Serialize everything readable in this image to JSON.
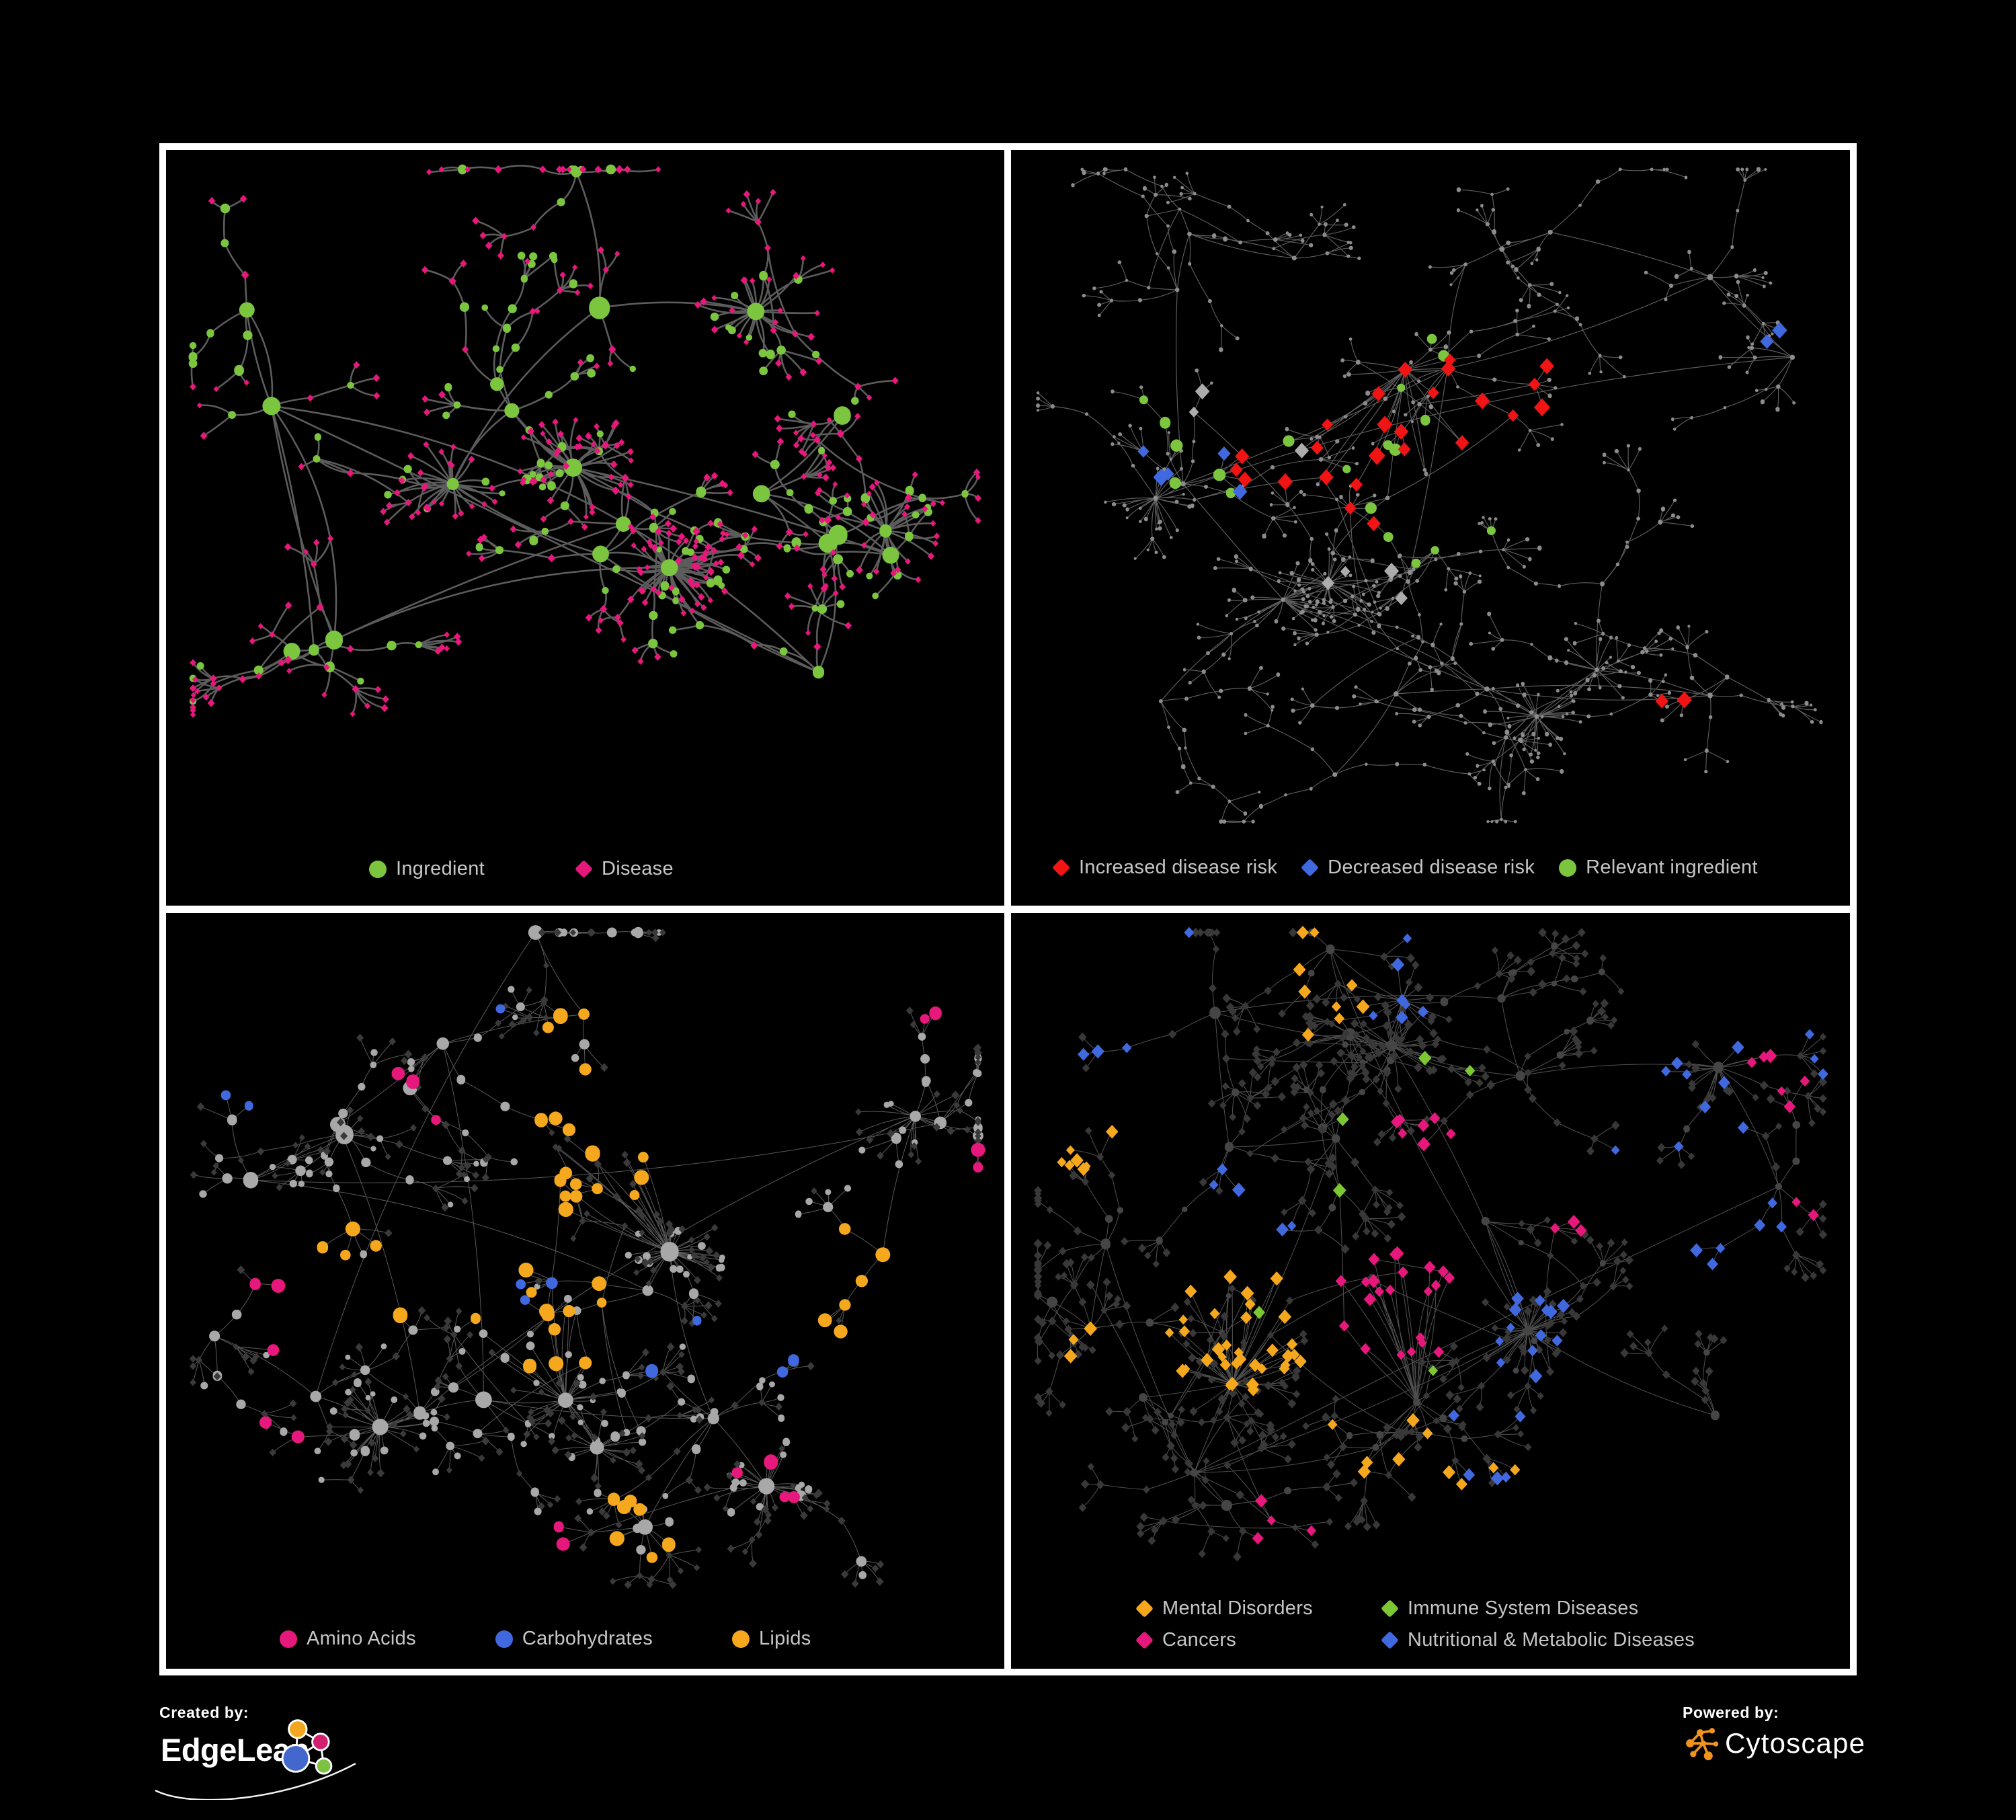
{
  "palette": {
    "green": "#7CC63F",
    "pink": "#E7187C",
    "red": "#F01414",
    "blue": "#4169DF",
    "grayHL": "#ACACAC",
    "amber": "#F5A81D",
    "gray": "#A8A8A8",
    "dot": "#8C8C8C",
    "dark": "#3A3A3A",
    "dark2": "#383838",
    "darkCircle": "#454545",
    "limegreen": "#7DC832",
    "legendText": "#C6C6C6",
    "cytoOrange": "#F0941E",
    "elOrange": "#F2A71F",
    "elMagenta": "#D21F6E",
    "elBlue": "#4467CE",
    "elGreen": "#7DC242",
    "white": "#FFFFFF"
  },
  "panels": [
    {
      "key": "ingredient-disease",
      "legend": {
        "rows": [
          [
            {
              "label": "Ingredient",
              "shape": "circle",
              "color": "green"
            },
            {
              "label": "Disease",
              "shape": "diamond",
              "color": "pink"
            }
          ]
        ]
      },
      "network": {
        "seed": 101,
        "hubs": 22,
        "branches": [
          2,
          4
        ],
        "chain": 3,
        "fan": [
          2,
          6
        ],
        "step": 0.05,
        "leaf": 0.034,
        "mega": 6,
        "megaLeaves": [
          16,
          34
        ],
        "web": 60,
        "webDist": 0.16,
        "curve": 0.2,
        "spread": [
          1.0,
          0.92
        ],
        "edge": {
          "color": "#666666",
          "width": 2.6,
          "opacity": 0.9
        },
        "roles": {
          "hub": [
            {
              "p": 1,
              "shape": "circle",
              "color": "green",
              "r": [
                7,
                16
              ]
            }
          ],
          "mid": [
            {
              "p": 0.5,
              "shape": "circle",
              "color": "green",
              "r": [
                5,
                7.5
              ]
            },
            {
              "p": 0.5,
              "shape": "diamond",
              "color": "pink",
              "r": [
                4.5,
                6
              ]
            }
          ],
          "leaf": [
            {
              "p": 0.8,
              "shape": "diamond",
              "color": "pink",
              "r": [
                4,
                5.5
              ]
            },
            {
              "p": 0.2,
              "shape": "circle",
              "color": "green",
              "r": [
                4.5,
                6.5
              ]
            }
          ]
        },
        "highlights": []
      }
    },
    {
      "key": "disease-risk",
      "legend": {
        "rows": [
          [
            {
              "label": "Increased disease risk",
              "shape": "diamond",
              "color": "red"
            },
            {
              "label": "Decreased disease risk",
              "shape": "diamond",
              "color": "blue"
            },
            {
              "label": "Relevant ingredient",
              "shape": "circle",
              "color": "green"
            }
          ]
        ]
      },
      "network": {
        "seed": 202,
        "hubs": 24,
        "branches": [
          3,
          5
        ],
        "chain": 4,
        "fan": [
          2,
          5
        ],
        "step": 0.045,
        "leaf": 0.03,
        "mega": 5,
        "megaLeaves": [
          12,
          26
        ],
        "web": 150,
        "webDist": 0.2,
        "curve": 0.1,
        "spread": [
          1.02,
          0.95
        ],
        "boost": [
          [
            20,
            0.44,
            0.4,
            0.12
          ]
        ],
        "edge": {
          "color": "#6E6E6E",
          "width": 1.15,
          "opacity": 0.85
        },
        "roles": {
          "hub": [
            {
              "p": 1,
              "shape": "circle",
              "color": "dot",
              "r": [
                2.8,
                4.2
              ]
            }
          ],
          "mid": [
            {
              "p": 1,
              "shape": "circle",
              "color": "dot",
              "r": [
                2.2,
                3.4
              ]
            }
          ],
          "leaf": [
            {
              "p": 1,
              "shape": "circle",
              "color": "dot",
              "r": [
                2,
                3.2
              ]
            }
          ]
        },
        "highlights": [
          {
            "shape": "diamond",
            "color": "red",
            "r": 10,
            "groups": [
              [
                16,
                0.48,
                0.43,
                0.14
              ],
              [
                5,
                0.3,
                0.42,
                0.08
              ],
              [
                4,
                0.6,
                0.36,
                0.07
              ],
              [
                2,
                0.78,
                0.86,
                0.07
              ]
            ]
          },
          {
            "shape": "diamond",
            "color": "blue",
            "r": 10,
            "groups": [
              [
                5,
                0.22,
                0.45,
                0.08
              ],
              [
                2,
                0.9,
                0.29,
                0.05
              ]
            ]
          },
          {
            "shape": "diamond",
            "color": "grayHL",
            "r": 9,
            "groups": [
              [
                4,
                0.45,
                0.57,
                0.1
              ],
              [
                3,
                0.27,
                0.38,
                0.09
              ]
            ]
          },
          {
            "shape": "circle",
            "color": "green",
            "r": 7.5,
            "groups": [
              [
                12,
                0.4,
                0.4,
                0.18
              ],
              [
                4,
                0.16,
                0.42,
                0.09
              ],
              [
                3,
                0.55,
                0.6,
                0.09
              ]
            ]
          }
        ]
      }
    },
    {
      "key": "nutrient-groups",
      "legend": {
        "rows": [
          [
            {
              "label": "Amino Acids",
              "shape": "circle",
              "color": "pink"
            },
            {
              "label": "Carbohydrates",
              "shape": "circle",
              "color": "blue"
            },
            {
              "label": "Lipids",
              "shape": "circle",
              "color": "amber"
            }
          ]
        ]
      },
      "network": {
        "seed": 303,
        "hubs": 22,
        "branches": [
          2,
          4
        ],
        "chain": 3,
        "fan": [
          2,
          6
        ],
        "step": 0.047,
        "leaf": 0.032,
        "mega": 7,
        "megaLeaves": [
          14,
          30
        ],
        "web": 90,
        "webDist": 0.2,
        "curve": 0.1,
        "spread": [
          1.0,
          0.92
        ],
        "boost": [
          [
            14,
            0.5,
            0.36,
            0.08
          ],
          [
            12,
            0.45,
            0.6,
            0.08
          ],
          [
            10,
            0.56,
            0.9,
            0.05
          ]
        ],
        "edge": {
          "color": "#B2B2B2",
          "width": 1.0,
          "opacity": 0.5
        },
        "roles": {
          "hub": [
            {
              "p": 1,
              "shape": "circle",
              "color": "gray",
              "r": [
                8,
                14
              ]
            }
          ],
          "mid": [
            {
              "p": 0.55,
              "shape": "circle",
              "color": "gray",
              "r": [
                4.5,
                8
              ]
            },
            {
              "p": 0.45,
              "shape": "diamond",
              "color": "dark",
              "r": [
                4.5,
                6
              ]
            }
          ],
          "leaf": [
            {
              "p": 0.7,
              "shape": "diamond",
              "color": "dark",
              "r": [
                4.5,
                6
              ]
            },
            {
              "p": 0.3,
              "shape": "circle",
              "color": "gray",
              "r": [
                4,
                6
              ]
            }
          ]
        },
        "highlights": [
          {
            "shape": "circle",
            "color": "amber",
            "r": 9,
            "groups": [
              [
                14,
                0.5,
                0.36,
                0.1
              ],
              [
                12,
                0.45,
                0.6,
                0.1
              ],
              [
                7,
                0.56,
                0.9,
                0.06
              ],
              [
                6,
                0.84,
                0.52,
                0.1
              ],
              [
                5,
                0.24,
                0.5,
                0.09
              ],
              [
                4,
                0.62,
                0.2,
                0.08
              ]
            ]
          },
          {
            "shape": "circle",
            "color": "pink",
            "r": 8.5,
            "groups": [
              [
                3,
                0.14,
                0.58,
                0.07
              ],
              [
                3,
                0.32,
                0.22,
                0.08
              ],
              [
                4,
                0.7,
                0.83,
                0.08
              ],
              [
                2,
                0.94,
                0.1,
                0.05
              ],
              [
                2,
                0.08,
                0.9,
                0.05
              ],
              [
                2,
                0.42,
                0.95,
                0.05
              ],
              [
                2,
                0.96,
                0.42,
                0.04
              ]
            ]
          },
          {
            "shape": "circle",
            "color": "blue",
            "r": 7.5,
            "groups": [
              [
                3,
                0.44,
                0.56,
                0.07
              ],
              [
                2,
                0.07,
                0.2,
                0.05
              ],
              [
                2,
                0.6,
                0.62,
                0.06
              ],
              [
                2,
                0.84,
                0.7,
                0.05
              ],
              [
                1,
                0.3,
                0.05,
                0.04
              ]
            ]
          }
        ]
      }
    },
    {
      "key": "disease-categories",
      "legend": {
        "rows": [
          [
            {
              "label": "Mental Disorders",
              "shape": "diamond",
              "color": "amber"
            },
            {
              "label": "Immune System Diseases",
              "shape": "diamond",
              "color": "limegreen"
            }
          ],
          [
            {
              "label": "Cancers",
              "shape": "diamond",
              "color": "pink"
            },
            {
              "label": "Nutritional & Metabolic Diseases",
              "shape": "diamond",
              "color": "blue"
            }
          ]
        ]
      },
      "network": {
        "seed": 404,
        "hubs": 26,
        "branches": [
          3,
          5
        ],
        "chain": 3,
        "fan": [
          2,
          6
        ],
        "step": 0.045,
        "leaf": 0.03,
        "mega": 7,
        "megaLeaves": [
          12,
          24
        ],
        "web": 150,
        "webDist": 0.22,
        "curve": 0.1,
        "spread": [
          1.02,
          0.95
        ],
        "boost": [
          [
            30,
            0.26,
            0.6,
            0.09
          ],
          [
            20,
            0.46,
            0.57,
            0.08
          ],
          [
            12,
            0.63,
            0.62,
            0.06
          ]
        ],
        "edge": {
          "color": "#9C9C9C",
          "width": 1.05,
          "opacity": 0.5
        },
        "roles": {
          "hub": [
            {
              "p": 1,
              "shape": "circle",
              "color": "darkCircle",
              "r": [
                5,
                8.5
              ]
            }
          ],
          "mid": [
            {
              "p": 0.25,
              "shape": "circle",
              "color": "darkCircle",
              "r": [
                4,
                6
              ]
            },
            {
              "p": 0.75,
              "shape": "diamond",
              "color": "dark2",
              "r": [
                5,
                6.5
              ]
            }
          ],
          "leaf": [
            {
              "p": 1,
              "shape": "diamond",
              "color": "dark2",
              "r": [
                5,
                6.5
              ]
            }
          ]
        },
        "highlights": [
          {
            "shape": "diamond",
            "color": "amber",
            "r": 8,
            "groups": [
              [
                34,
                0.26,
                0.6,
                0.1
              ],
              [
                9,
                0.35,
                0.08,
                0.09
              ],
              [
                7,
                0.12,
                0.34,
                0.08
              ],
              [
                6,
                0.42,
                0.78,
                0.08
              ],
              [
                4,
                0.55,
                0.93,
                0.06
              ],
              [
                3,
                0.07,
                0.6,
                0.05
              ]
            ]
          },
          {
            "shape": "diamond",
            "color": "pink",
            "r": 8,
            "groups": [
              [
                22,
                0.46,
                0.57,
                0.09
              ],
              [
                7,
                0.52,
                0.32,
                0.07
              ],
              [
                6,
                0.92,
                0.23,
                0.06
              ],
              [
                4,
                0.3,
                0.88,
                0.06
              ],
              [
                3,
                0.65,
                0.4,
                0.05
              ],
              [
                2,
                0.97,
                0.4,
                0.04
              ]
            ]
          },
          {
            "shape": "diamond",
            "color": "blue",
            "r": 8,
            "groups": [
              [
                13,
                0.63,
                0.62,
                0.07
              ],
              [
                9,
                0.8,
                0.28,
                0.1
              ],
              [
                7,
                0.48,
                0.06,
                0.1
              ],
              [
                6,
                0.88,
                0.47,
                0.07
              ],
              [
                5,
                0.27,
                0.42,
                0.07
              ],
              [
                5,
                0.56,
                0.78,
                0.07
              ],
              [
                4,
                0.12,
                0.1,
                0.06
              ],
              [
                4,
                0.97,
                0.12,
                0.05
              ]
            ]
          },
          {
            "shape": "diamond",
            "color": "limegreen",
            "r": 8,
            "groups": [
              [
                2,
                0.4,
                0.35,
                0.06
              ],
              [
                2,
                0.52,
                0.18,
                0.05
              ],
              [
                1,
                0.45,
                0.65,
                0.04
              ],
              [
                1,
                0.3,
                0.6,
                0.04
              ]
            ]
          }
        ]
      }
    }
  ],
  "footer": {
    "created_by": {
      "label": "Created by:",
      "brand": "EdgeLeap"
    },
    "powered_by": {
      "label": "Powered by:",
      "brand": "Cytoscape"
    }
  }
}
